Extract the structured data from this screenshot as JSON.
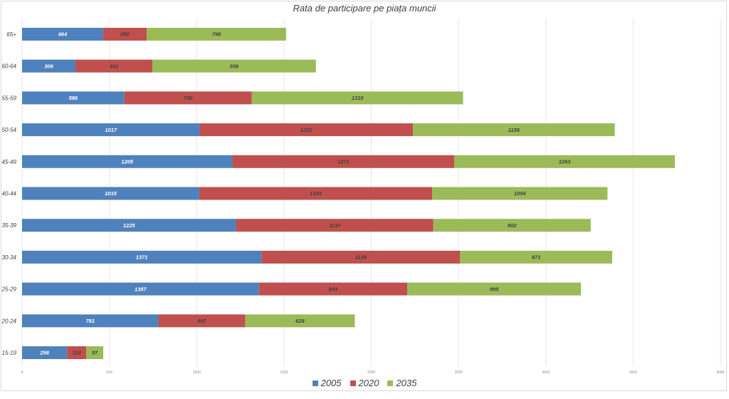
{
  "chart_data": {
    "type": "bar",
    "orientation": "horizontal",
    "stacked": true,
    "title": "Rata de participare pe piața muncii",
    "xlabel": "",
    "ylabel": "",
    "xlim": [
      0,
      4000
    ],
    "xticks": [
      "0",
      "500",
      "1000",
      "1500",
      "2000",
      "2500",
      "3000",
      "3500",
      "4000"
    ],
    "xtick_values": [
      0,
      500,
      1000,
      1500,
      2000,
      2500,
      3000,
      3500,
      4000
    ],
    "grid": "vertical",
    "legend_position": "bottom",
    "categories": [
      "65+",
      "60-64",
      "55-59",
      "50-54",
      "45-49",
      "40-44",
      "35-39",
      "30-34",
      "25-29",
      "20-24",
      "15-19"
    ],
    "series": [
      {
        "name": "2005",
        "color": "#4f81bd",
        "label_color": "#ffffff",
        "values": [
          464,
          306,
          586,
          1017,
          1205,
          1015,
          1225,
          1371,
          1357,
          781,
          258
        ]
      },
      {
        "name": "2020",
        "color": "#c0504d",
        "label_color": "#404040",
        "values": [
          250,
          441,
          730,
          1222,
          1271,
          1334,
          1130,
          1138,
          849,
          497,
          110
        ]
      },
      {
        "name": "2035",
        "color": "#9bbb59",
        "label_color": "#404040",
        "values": [
          798,
          936,
          1210,
          1156,
          1263,
          1004,
          902,
          871,
          995,
          628,
          97
        ]
      }
    ]
  }
}
